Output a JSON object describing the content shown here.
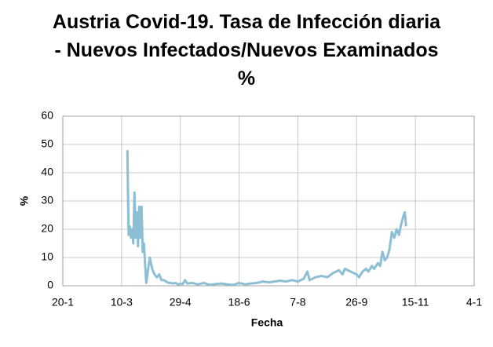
{
  "chart_data": {
    "type": "line",
    "title": "Austria Covid-19. Tasa de Infección diaria - Nuevos Infectados/Nuevos Examinados %",
    "x_label": "Fecha",
    "y_label": "%",
    "xlim": [
      20,
      370
    ],
    "xticks": [
      {
        "value": 20,
        "label": "20-1"
      },
      {
        "value": 70,
        "label": "10-3"
      },
      {
        "value": 120,
        "label": "29-4"
      },
      {
        "value": 170,
        "label": "18-6"
      },
      {
        "value": 220,
        "label": "7-8"
      },
      {
        "value": 270,
        "label": "26-9"
      },
      {
        "value": 320,
        "label": "15-11"
      },
      {
        "value": 370,
        "label": "4-1"
      }
    ],
    "ylim": [
      0,
      60
    ],
    "yticks": [
      0,
      10,
      20,
      30,
      40,
      50,
      60
    ],
    "grid": true,
    "series": [
      {
        "color": "#8cbfd4",
        "x": [
          75,
          76,
          77,
          78,
          79,
          80,
          81,
          82,
          83,
          84,
          85,
          86,
          87,
          88,
          89,
          90,
          91,
          92,
          94,
          96,
          98,
          100,
          102,
          104,
          106,
          108,
          110,
          112,
          114,
          116,
          118,
          120,
          122,
          124,
          126,
          130,
          135,
          140,
          145,
          150,
          155,
          160,
          165,
          170,
          175,
          180,
          185,
          190,
          195,
          200,
          205,
          210,
          215,
          220,
          225,
          228,
          230,
          235,
          240,
          245,
          250,
          255,
          258,
          260,
          265,
          270,
          272,
          275,
          278,
          280,
          283,
          285,
          288,
          290,
          292,
          294,
          296,
          298,
          300,
          302,
          304,
          306,
          308,
          310,
          311,
          312
        ],
        "values": [
          48,
          18,
          21,
          17,
          20,
          15,
          33,
          17,
          26,
          14,
          28,
          17,
          28,
          12,
          15,
          8,
          1,
          4,
          10,
          6,
          4,
          3,
          4,
          2,
          2,
          1.5,
          1,
          1,
          0.8,
          1,
          0.5,
          0.7,
          0.6,
          2,
          0.8,
          1,
          0.5,
          1,
          0.3,
          0.6,
          0.8,
          0.5,
          0.3,
          1,
          0.5,
          0.8,
          1,
          1.5,
          1.2,
          1.5,
          1.8,
          1.5,
          2,
          1.5,
          2.5,
          5,
          2,
          3,
          3.5,
          3,
          4.5,
          5.5,
          4,
          6,
          5,
          4,
          3,
          5,
          6,
          5,
          7,
          6,
          8,
          7,
          12,
          9,
          10,
          13,
          19,
          17,
          20,
          18,
          22,
          25,
          26,
          21
        ]
      }
    ]
  }
}
